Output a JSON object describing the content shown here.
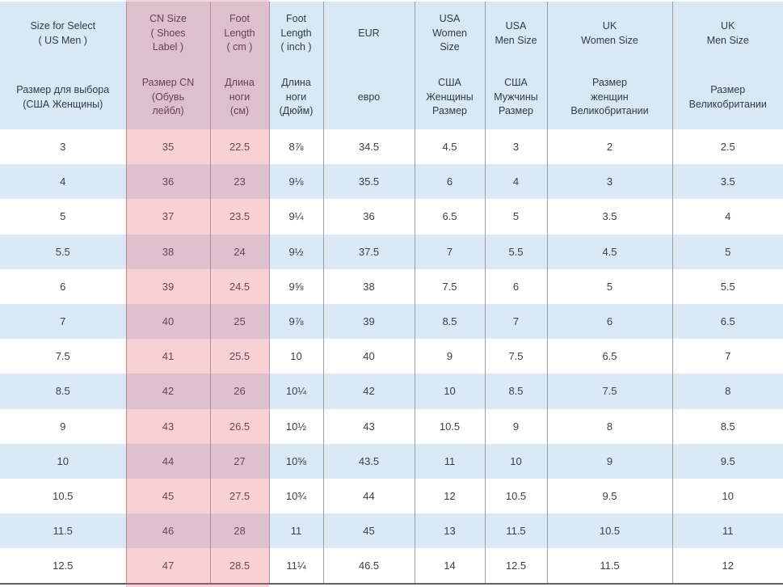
{
  "table": {
    "columns": [
      {
        "id": "us-select",
        "en": "Size for Select\n( US Men )",
        "ru": "Размер для выбора\n(США Женщины)"
      },
      {
        "id": "cn-size",
        "en": "CN Size\n( Shoes\nLabel )",
        "ru": "Размер CN\n(Обувь\nлейбл)"
      },
      {
        "id": "foot-cm",
        "en": "Foot\nLength\n( cm )",
        "ru": "Длина\nноги\n(см)"
      },
      {
        "id": "foot-inch",
        "en": "Foot\nLength\n( inch )",
        "ru": "Длина\nноги\n(Дюйм)"
      },
      {
        "id": "eur",
        "en": "EUR",
        "ru": "евро"
      },
      {
        "id": "usa-women",
        "en": "USA\nWomen\nSize",
        "ru": "США\nЖенщины\nРазмер"
      },
      {
        "id": "usa-men",
        "en": "USA\nMen Size",
        "ru": "США\nМужчины\nРазмер"
      },
      {
        "id": "uk-women",
        "en": "UK\nWomen Size",
        "ru": "Размер\nженщин\nВеликобритании"
      },
      {
        "id": "uk-men",
        "en": "UK\nMen Size",
        "ru": "Размер\nВеликобритании"
      }
    ],
    "rows": [
      [
        "3",
        "35",
        "22.5",
        "8⅞",
        "34.5",
        "4.5",
        "3",
        "2",
        "2.5"
      ],
      [
        "4",
        "36",
        "23",
        "9⅛",
        "35.5",
        "6",
        "4",
        "3",
        "3.5"
      ],
      [
        "5",
        "37",
        "23.5",
        "9¼",
        "36",
        "6.5",
        "5",
        "3.5",
        "4"
      ],
      [
        "5.5",
        "38",
        "24",
        "9½",
        "37.5",
        "7",
        "5.5",
        "4.5",
        "5"
      ],
      [
        "6",
        "39",
        "24.5",
        "9⅝",
        "38",
        "7.5",
        "6",
        "5",
        "5.5"
      ],
      [
        "7",
        "40",
        "25",
        "9⅞",
        "39",
        "8.5",
        "7",
        "6",
        "6.5"
      ],
      [
        "7.5",
        "41",
        "25.5",
        "10",
        "40",
        "9",
        "7.5",
        "6.5",
        "7"
      ],
      [
        "8.5",
        "42",
        "26",
        "10¼",
        "42",
        "10",
        "8.5",
        "7.5",
        "8"
      ],
      [
        "9",
        "43",
        "26.5",
        "10½",
        "43",
        "10.5",
        "9",
        "8",
        "8.5"
      ],
      [
        "10",
        "44",
        "27",
        "10⅝",
        "43.5",
        "11",
        "10",
        "9",
        "9.5"
      ],
      [
        "10.5",
        "45",
        "27.5",
        "10¾",
        "44",
        "12",
        "10.5",
        "9.5",
        "10"
      ],
      [
        "11.5",
        "46",
        "28",
        "11",
        "45",
        "13",
        "11.5",
        "10.5",
        "11"
      ],
      [
        "12.5",
        "47",
        "28.5",
        "11¼",
        "46.5",
        "14",
        "12.5",
        "11.5",
        "12"
      ]
    ],
    "highlighted_columns": [
      "cn-size",
      "foot-cm"
    ]
  },
  "colors": {
    "header_bg": "#d9e8f5",
    "row_alt_bg": "#dbe8f5",
    "highlight_overlay": "rgba(230,91,105,0.28)",
    "column_border": "#98a0a6",
    "bottom_border": "#5f6368",
    "text": "#3a3f4a"
  }
}
